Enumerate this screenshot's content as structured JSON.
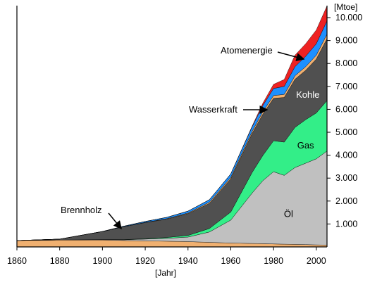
{
  "chart_data": {
    "type": "area",
    "stacked": true,
    "title": "",
    "xlabel": "[Jahr]",
    "ylabel": "[Mtoe]",
    "xlim": [
      1860,
      2005
    ],
    "ylim": [
      0,
      10400
    ],
    "grid": false,
    "legend": "none",
    "x_ticks": [
      1860,
      1880,
      1900,
      1920,
      1940,
      1960,
      1980,
      2000
    ],
    "x_tick_labels": [
      "1860",
      "1880",
      "1900",
      "1920",
      "1940",
      "1960",
      "1980",
      "2000"
    ],
    "y_ticks": [
      1000,
      2000,
      3000,
      4000,
      5000,
      6000,
      7000,
      8000,
      9000,
      10000
    ],
    "y_tick_labels": [
      "1.000",
      "2.000",
      "3.000",
      "4.000",
      "5.000",
      "6.000",
      "7.000",
      "8.000",
      "9.000",
      "10.000"
    ],
    "x": [
      1860,
      1880,
      1900,
      1910,
      1920,
      1930,
      1940,
      1950,
      1960,
      1970,
      1975,
      1980,
      1985,
      1990,
      1995,
      2000,
      2005
    ],
    "series": [
      {
        "name": "Öl",
        "color": "#c0c0c0",
        "values": [
          0,
          0,
          20,
          30,
          80,
          120,
          200,
          450,
          1000,
          2200,
          2750,
          3150,
          3000,
          3350,
          3550,
          3750,
          4100
        ]
      },
      {
        "name": "Gas",
        "color": "#33ee88",
        "values": [
          0,
          0,
          0,
          10,
          20,
          40,
          70,
          150,
          350,
          900,
          1100,
          1350,
          1450,
          1750,
          1900,
          2000,
          2200
        ]
      },
      {
        "name": "Kohle",
        "color": "#505050",
        "values": [
          0,
          40,
          350,
          560,
          700,
          800,
          950,
          1100,
          1450,
          1700,
          1800,
          1850,
          1950,
          2100,
          2150,
          2350,
          2700
        ]
      },
      {
        "name": "Wasserkraft",
        "color": "#f0b070",
        "values": [
          0,
          0,
          0,
          5,
          10,
          20,
          30,
          50,
          60,
          90,
          110,
          120,
          130,
          150,
          160,
          170,
          200
        ]
      },
      {
        "name": "Wasserkraft",
        "color": "#1e90ff",
        "values": [
          0,
          0,
          5,
          20,
          40,
          60,
          80,
          110,
          150,
          200,
          270,
          310,
          350,
          400,
          450,
          500,
          580
        ]
      },
      {
        "name": "Atomenergie",
        "color": "#ee2222",
        "values": [
          0,
          0,
          0,
          0,
          0,
          0,
          0,
          0,
          0,
          30,
          100,
          180,
          300,
          500,
          550,
          600,
          650
        ]
      }
    ],
    "brennholz": {
      "name": "Brennholz",
      "color": "#f0b070",
      "values": [
        280,
        300,
        300,
        280,
        260,
        250,
        230,
        200,
        170,
        150,
        140,
        130,
        120,
        110,
        100,
        90,
        80
      ]
    },
    "annotations": [
      {
        "text": "Atomenergie",
        "x": 1991,
        "y": 8750
      },
      {
        "text": "Wasserkraft",
        "x": 1977,
        "y": 6200
      },
      {
        "text": "Brennholz",
        "x": 1908,
        "y": 650
      }
    ],
    "inner_labels": [
      {
        "text": "Kohle",
        "x": 1996,
        "y": 6500
      },
      {
        "text": "Gas",
        "x": 1995,
        "y": 4300
      },
      {
        "text": "Öl",
        "x": 1987,
        "y": 1300
      }
    ]
  }
}
